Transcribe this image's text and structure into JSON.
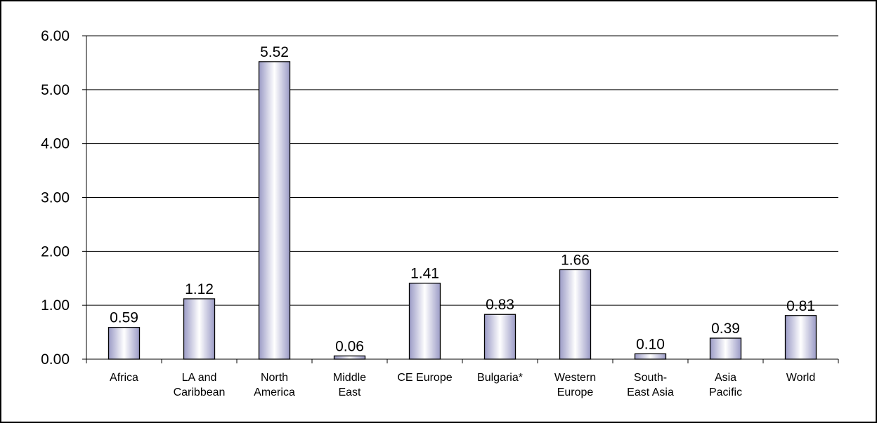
{
  "chart_data": {
    "type": "bar",
    "title": "",
    "xlabel": "",
    "ylabel": "",
    "categories": [
      [
        "Africa"
      ],
      [
        "LA and",
        "Caribbean"
      ],
      [
        "North",
        "America"
      ],
      [
        "Middle",
        "East"
      ],
      [
        "CE Europe"
      ],
      [
        "Bulgaria*"
      ],
      [
        "Western",
        "Europe"
      ],
      [
        "South-",
        "East Asia"
      ],
      [
        "Asia",
        "Pacific"
      ],
      [
        "World"
      ]
    ],
    "values": [
      0.59,
      1.12,
      5.52,
      0.06,
      1.41,
      0.83,
      1.66,
      0.1,
      0.39,
      0.81
    ],
    "data_labels": [
      "0.59",
      "1.12",
      "5.52",
      "0.06",
      "1.41",
      "0.83",
      "1.66",
      "0.10",
      "0.39",
      "0.81"
    ],
    "ylim": [
      0,
      6
    ],
    "yticks": [
      0,
      1,
      2,
      3,
      4,
      5,
      6
    ],
    "ytick_labels": [
      "0.00",
      "1.00",
      "2.00",
      "3.00",
      "4.00",
      "5.00",
      "6.00"
    ],
    "grid": true,
    "legend": "none",
    "colors": {
      "bar_edge": "#9b9bc6",
      "bar_center": "#ffffff",
      "bar_outline": "#000000",
      "gridline": "#000000"
    }
  }
}
